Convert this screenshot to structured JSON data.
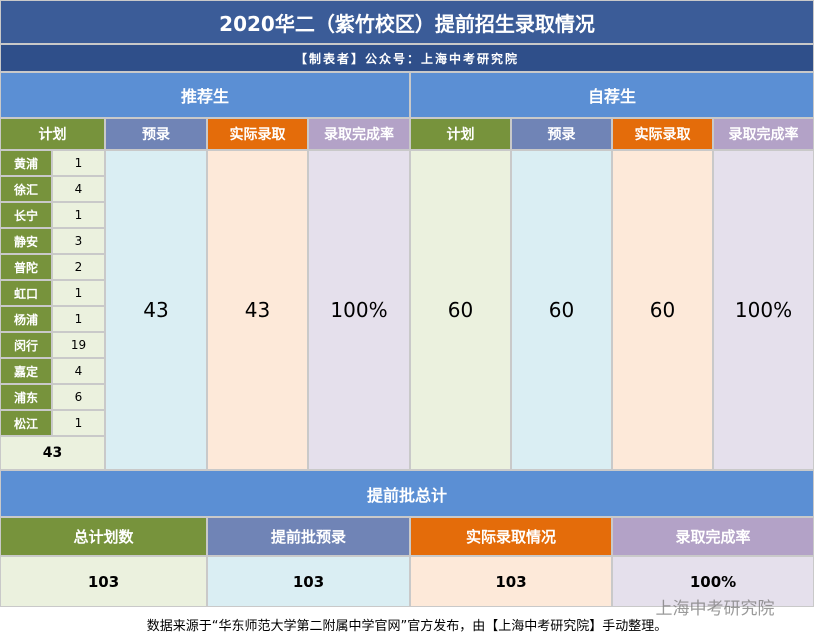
{
  "header": {
    "title": "2020华二（紫竹校区）提前招生录取情况",
    "subtitle": "【制表者】公众号：上海中考研究院"
  },
  "sections": [
    "推荐生",
    "自荐生"
  ],
  "table": {
    "columns": [
      "计划",
      "预录",
      "实际录取",
      "录取完成率",
      "计划",
      "预录",
      "实际录取",
      "录取完成率"
    ],
    "districts": [
      [
        "黄浦",
        "1"
      ],
      [
        "徐汇",
        "4"
      ],
      [
        "长宁",
        "1"
      ],
      [
        "静安",
        "3"
      ],
      [
        "普陀",
        "2"
      ],
      [
        "虹口",
        "1"
      ],
      [
        "杨浦",
        "1"
      ],
      [
        "闵行",
        "19"
      ],
      [
        "嘉定",
        "4"
      ],
      [
        "浦东",
        "6"
      ],
      [
        "松江",
        "1"
      ]
    ],
    "district_total": "43",
    "values": [
      "43",
      "43",
      "100%",
      "60",
      "60",
      "60",
      "100%"
    ]
  },
  "summary": {
    "title": "提前批总计",
    "columns": [
      "总计划数",
      "提前批预录",
      "实际录取情况",
      "录取完成率"
    ],
    "values": [
      "103",
      "103",
      "103",
      "100%"
    ]
  },
  "footer": "数据来源于“华东师范大学第二附属中学官网”官方发布，由【上海中考研究院】手动整理。",
  "watermark": "上海中考研究院"
}
